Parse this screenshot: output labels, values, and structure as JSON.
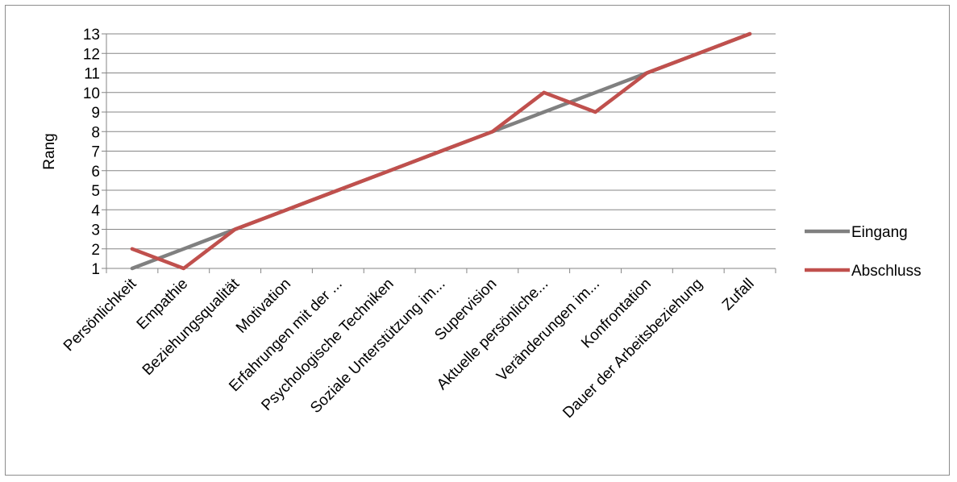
{
  "chart_data": {
    "type": "line",
    "title": "",
    "xlabel": "",
    "ylabel": "Rang",
    "ylim": [
      1,
      13
    ],
    "y_ticks": [
      1,
      2,
      3,
      4,
      5,
      6,
      7,
      8,
      9,
      10,
      11,
      12,
      13
    ],
    "grid": true,
    "legend_position": "right",
    "categories": [
      "Persönlichkeit",
      "Empathie",
      "Beziehungsqualität",
      "Motivation",
      "Erfahrungen mit der ...",
      "Psychologische Techniken",
      "Soziale Unterstützung im...",
      "Supervision",
      "Aktuelle persönliche...",
      "Veränderungen im...",
      "Konfrontation",
      "Dauer der Arbeitsbeziehung",
      "Zufall"
    ],
    "series": [
      {
        "name": "Eingang",
        "color": "#808080",
        "values": [
          1,
          2,
          3,
          4,
          5,
          6,
          7,
          8,
          9,
          10,
          11,
          12,
          13
        ]
      },
      {
        "name": "Abschluss",
        "color": "#c0504d",
        "values": [
          2,
          1,
          3,
          4,
          5,
          6,
          7,
          8,
          10,
          9,
          11,
          12,
          13
        ]
      }
    ]
  }
}
